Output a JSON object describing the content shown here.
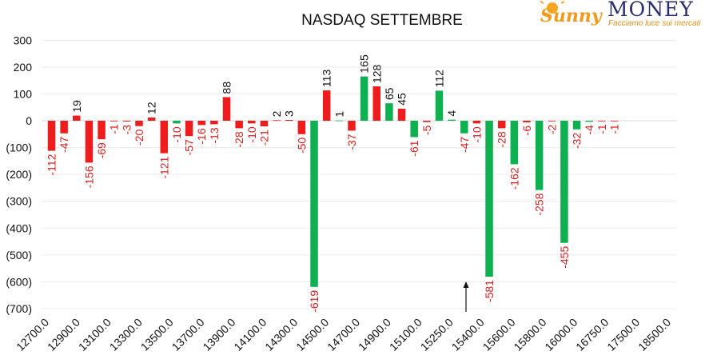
{
  "chart_data": {
    "type": "bar",
    "title": "NASDAQ SETTEMBRE",
    "xlabel": "",
    "ylabel": "",
    "ylim": [
      -700,
      300
    ],
    "y_ticks": [
      300,
      200,
      100,
      0,
      -100,
      -200,
      -300,
      -400,
      -500,
      -600,
      -700
    ],
    "y_tick_labels": [
      "300",
      "200",
      "100",
      "0",
      "(100)",
      "(200)",
      "(300)",
      "(400)",
      "(500)",
      "(600)",
      "(700)"
    ],
    "x_tick_labels": [
      "12700.0",
      "12900.0",
      "13100.0",
      "13300.0",
      "13500.0",
      "13700.0",
      "13900.0",
      "14100.0",
      "14300.0",
      "14500.0",
      "14700.0",
      "14900.0",
      "15100.0",
      "15250.0",
      "15400.0",
      "15600.0",
      "15800.0",
      "16000.0",
      "16750.0",
      "17500.0",
      "18500.0"
    ],
    "grid": true,
    "colors": {
      "red_series": "#ee1c1c",
      "green_series": "#0fb050",
      "red_label": "#d81e1e",
      "dark_label": "#111111"
    },
    "bars": [
      {
        "series": "red",
        "value": -112,
        "label": "-112"
      },
      {
        "series": "red",
        "value": -47,
        "label": "-47"
      },
      {
        "series": "red",
        "value": 19,
        "label": "19"
      },
      {
        "series": "red",
        "value": -156,
        "label": "-156"
      },
      {
        "series": "red",
        "value": -69,
        "label": "-69"
      },
      {
        "series": "red",
        "value": -1,
        "label": "-1"
      },
      {
        "series": "red",
        "value": -3,
        "label": "-3"
      },
      {
        "series": "red",
        "value": -20,
        "label": "-20"
      },
      {
        "series": "red",
        "value": 12,
        "label": "12"
      },
      {
        "series": "red",
        "value": -121,
        "label": "-121"
      },
      {
        "series": "green",
        "value": -10,
        "label": "-10"
      },
      {
        "series": "red",
        "value": -57,
        "label": "-57"
      },
      {
        "series": "red",
        "value": -16,
        "label": "-16"
      },
      {
        "series": "red",
        "value": -13,
        "label": "-13"
      },
      {
        "series": "red",
        "value": 88,
        "label": "88"
      },
      {
        "series": "red",
        "value": -28,
        "label": "-28"
      },
      {
        "series": "red",
        "value": -10,
        "label": "-10"
      },
      {
        "series": "red",
        "value": -21,
        "label": "-21"
      },
      {
        "series": "red",
        "value": 2,
        "label": "2"
      },
      {
        "series": "red",
        "value": 3,
        "label": "3"
      },
      {
        "series": "red",
        "value": -50,
        "label": "-50"
      },
      {
        "series": "green",
        "value": -619,
        "label": "-619"
      },
      {
        "series": "red",
        "value": 113,
        "label": "113"
      },
      {
        "series": "green",
        "value": 1,
        "label": "1"
      },
      {
        "series": "red",
        "value": -37,
        "label": "-37"
      },
      {
        "series": "green",
        "value": 165,
        "label": "165"
      },
      {
        "series": "red",
        "value": 128,
        "label": "128"
      },
      {
        "series": "green",
        "value": 65,
        "label": "65"
      },
      {
        "series": "red",
        "value": 45,
        "label": "45"
      },
      {
        "series": "green",
        "value": -61,
        "label": "-61"
      },
      {
        "series": "red",
        "value": -5,
        "label": "-5"
      },
      {
        "series": "green",
        "value": 112,
        "label": "112"
      },
      {
        "series": "green",
        "value": 4,
        "label": "4"
      },
      {
        "series": "green",
        "value": -47,
        "label": "-47"
      },
      {
        "series": "red",
        "value": -10,
        "label": "-10"
      },
      {
        "series": "green",
        "value": -581,
        "label": "-581"
      },
      {
        "series": "red",
        "value": -28,
        "label": "-28"
      },
      {
        "series": "green",
        "value": -162,
        "label": "-162"
      },
      {
        "series": "red",
        "value": -6,
        "label": "-6"
      },
      {
        "series": "green",
        "value": -258,
        "label": "-258"
      },
      {
        "series": "red",
        "value": -2,
        "label": "-2"
      },
      {
        "series": "green",
        "value": -455,
        "label": "-455"
      },
      {
        "series": "green",
        "value": -32,
        "label": "-32"
      },
      {
        "series": "green",
        "value": -4,
        "label": "-4"
      },
      {
        "series": "red",
        "value": -1,
        "label": "-1"
      },
      {
        "series": "red",
        "value": -1,
        "label": "-1"
      }
    ],
    "annotations": [
      {
        "type": "arrow",
        "direction": "up",
        "near_x_label": "15400.0"
      }
    ]
  },
  "logo": {
    "script_word": "Sunny",
    "word": "MONEY",
    "tagline": "Facciamo luce sui mercati",
    "sun_color": "#f5a623"
  }
}
